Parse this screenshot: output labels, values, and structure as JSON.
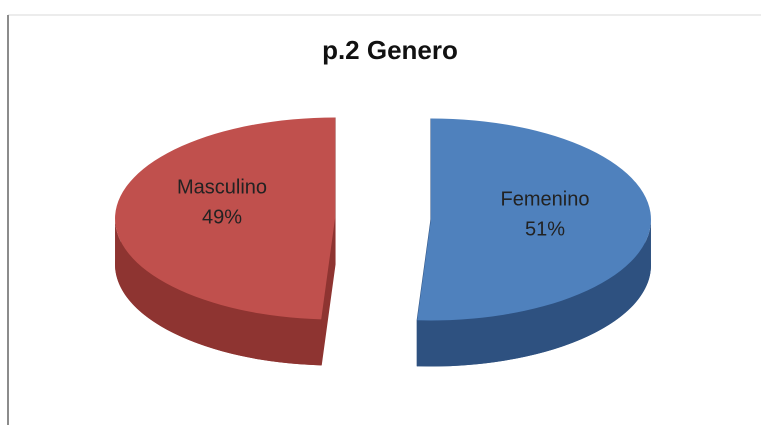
{
  "chart_data": {
    "type": "pie",
    "title": "p.2 Genero",
    "categories": [
      "Femenino",
      "Masculino"
    ],
    "values": [
      51,
      49
    ],
    "value_labels": [
      "51%",
      "49%"
    ],
    "colors": [
      "#4f81bd",
      "#c0504d"
    ],
    "side_colors": [
      "#2e5180",
      "#8e3431"
    ]
  }
}
